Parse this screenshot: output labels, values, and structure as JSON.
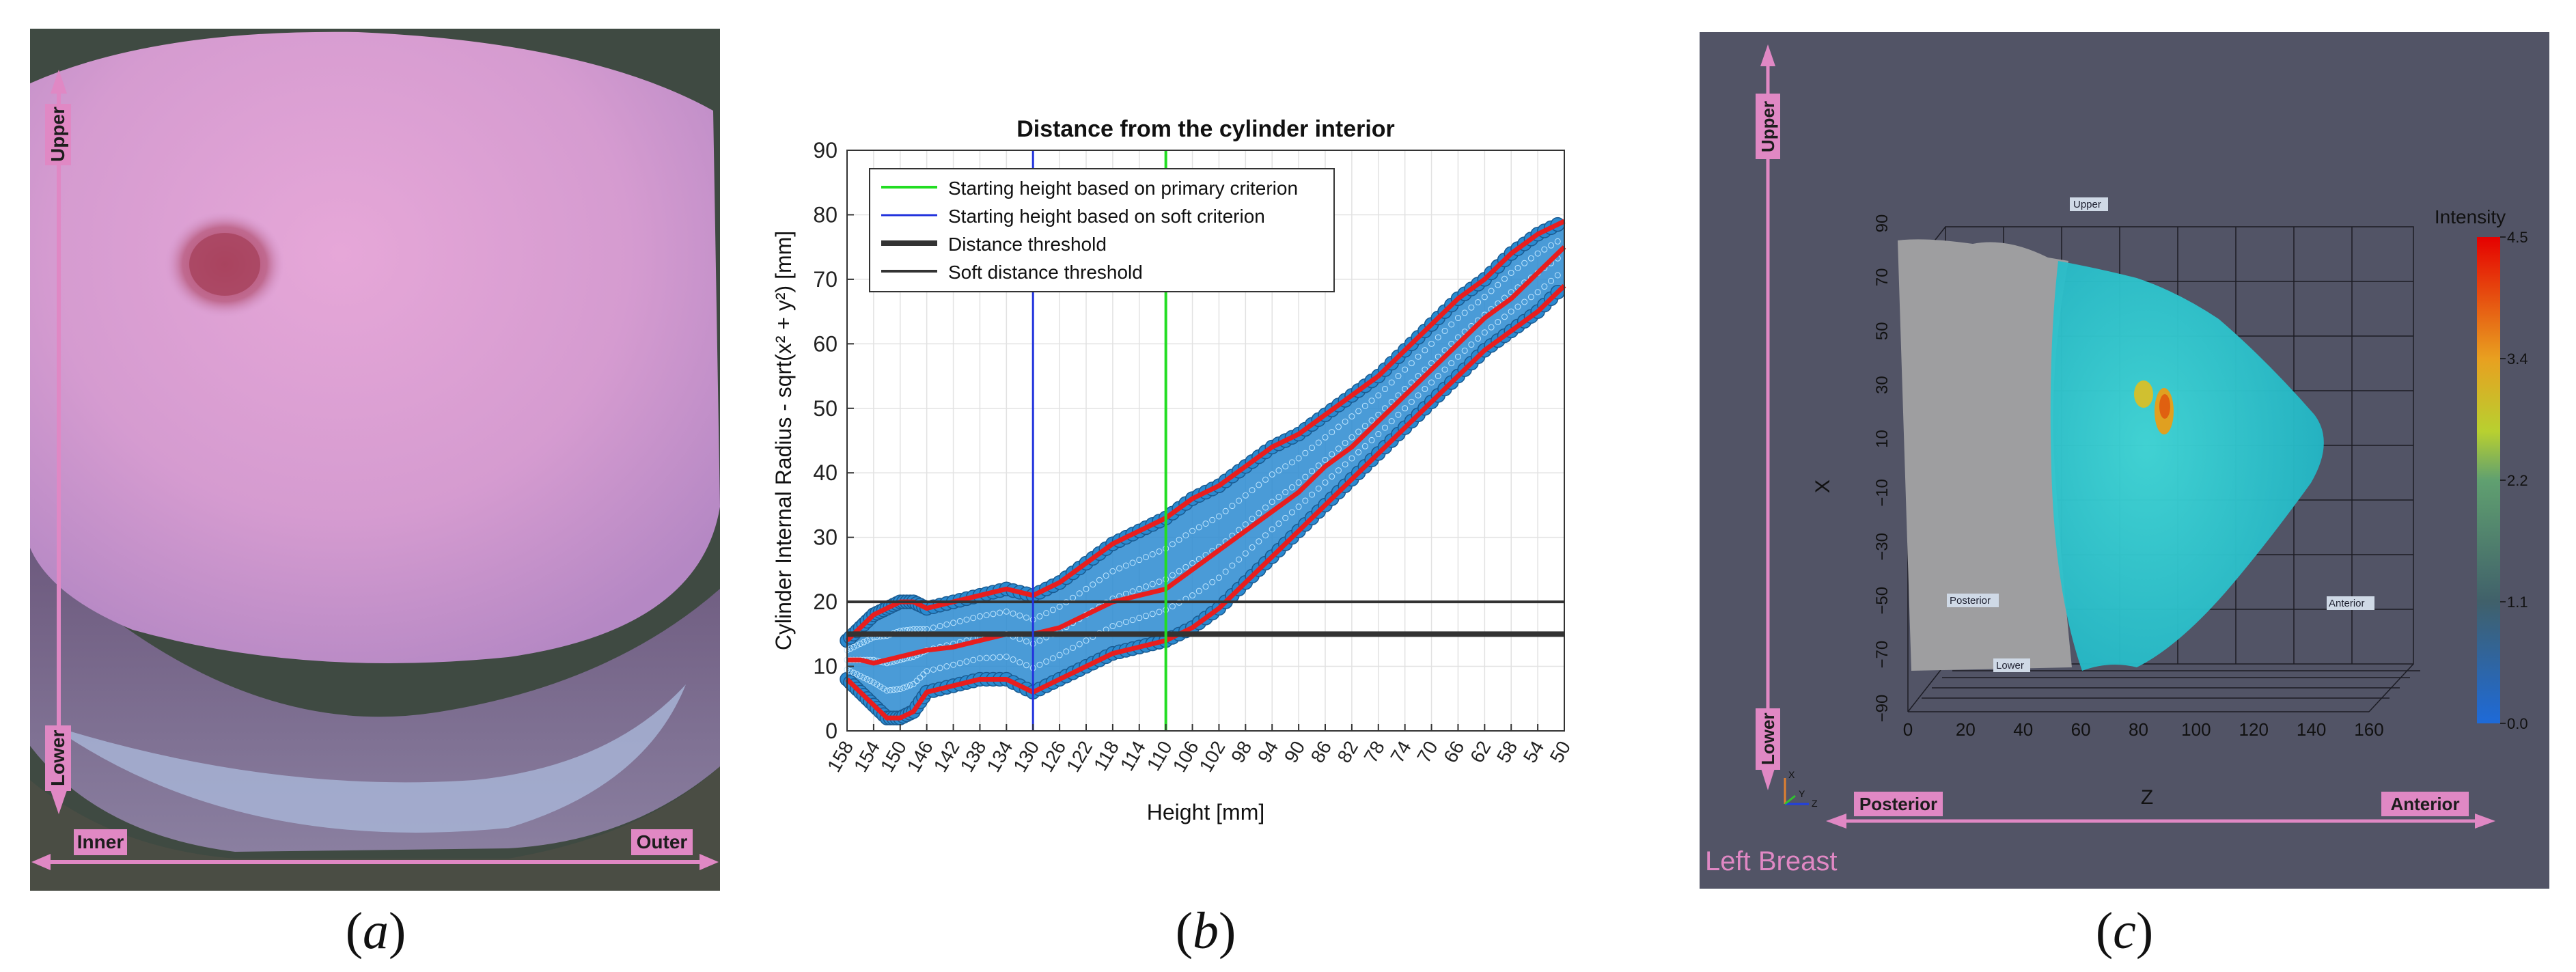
{
  "captions": {
    "a": "a",
    "b": "b",
    "c": "c"
  },
  "panel_a": {
    "labels": {
      "upper": "Upper",
      "lower": "Lower",
      "inner": "Inner",
      "outer": "Outer"
    }
  },
  "panel_c": {
    "labels": {
      "upper": "Upper",
      "lower": "Lower",
      "posterior": "Posterior",
      "anterior": "Anterior",
      "left_breast": "Left Breast",
      "in_upper": "Upper",
      "in_lower": "Lower",
      "in_posterior": "Posterior",
      "in_anterior": "Anterior",
      "x_axis": "X",
      "z_axis": "Z",
      "triad_x": "X",
      "triad_y": "Y",
      "triad_z": "Z"
    },
    "colorbar": {
      "title": "Intensity",
      "ticks": [
        "4.5",
        "3.4",
        "2.2",
        "1.1",
        "0.0"
      ]
    },
    "x_ticks": [
      "90",
      "70",
      "50",
      "30",
      "10",
      "−10",
      "−30",
      "−50",
      "−70",
      "−90"
    ],
    "z_ticks": [
      "0",
      "20",
      "40",
      "60",
      "80",
      "100",
      "120",
      "140",
      "160"
    ]
  },
  "colors": {
    "pink": "#e088c4",
    "red": "#e81e1e",
    "blue_pts": "#2a8ad0",
    "green": "#22dd22",
    "vblue": "#2233dd"
  },
  "chart_data": {
    "type": "scatter",
    "title": "Distance from the cylinder interior",
    "xlabel": "Height [mm]",
    "ylabel": "Cylinder Internal Radius - sqrt(x² + y²) [mm]",
    "xlim": [
      158,
      50
    ],
    "ylim": [
      0,
      90
    ],
    "x_reversed": true,
    "x_ticks": [
      158,
      154,
      150,
      146,
      142,
      138,
      134,
      130,
      126,
      122,
      118,
      114,
      110,
      106,
      102,
      98,
      94,
      90,
      86,
      82,
      78,
      74,
      70,
      66,
      62,
      58,
      54,
      50
    ],
    "y_ticks": [
      0,
      10,
      20,
      30,
      40,
      50,
      60,
      70,
      80,
      90
    ],
    "grid": true,
    "legend_position": "top-left",
    "legend": [
      {
        "label": "Starting height based on primary criterion",
        "color": "#22dd22"
      },
      {
        "label": "Starting height based on soft criterion",
        "color": "#2233dd"
      },
      {
        "label": "Distance threshold",
        "color": "#333333"
      },
      {
        "label": "Soft distance threshold",
        "color": "#333333"
      }
    ],
    "vlines": {
      "primary_criterion": 110,
      "soft_criterion": 130
    },
    "hlines": {
      "distance_threshold": 15,
      "soft_distance_threshold": 20
    },
    "envelope": {
      "x": [
        158,
        156,
        154,
        152,
        150,
        148,
        146,
        142,
        138,
        134,
        130,
        126,
        122,
        118,
        114,
        110,
        106,
        102,
        98,
        94,
        90,
        86,
        82,
        78,
        74,
        70,
        66,
        62,
        58,
        54,
        50
      ],
      "upper": [
        14,
        16,
        18,
        19,
        20,
        20,
        19,
        20,
        21,
        22,
        21,
        23,
        26,
        29,
        31,
        33,
        36,
        38,
        41,
        44,
        46,
        49,
        52,
        55,
        59,
        63,
        67,
        70,
        74,
        77,
        79
      ],
      "mean": [
        11,
        11,
        10.5,
        11,
        11.5,
        12,
        12.5,
        13,
        14,
        15,
        15,
        16,
        18,
        20,
        21,
        22,
        25,
        28,
        31,
        34,
        37,
        41,
        44,
        48,
        52,
        56,
        60,
        64,
        67,
        71,
        75
      ],
      "lower": [
        8,
        6,
        4,
        2,
        2,
        3,
        6,
        7,
        8,
        8,
        6,
        8,
        10,
        12,
        13,
        14,
        16,
        19,
        23,
        27,
        31,
        35,
        39,
        43,
        47,
        51,
        55,
        59,
        62,
        65,
        69
      ]
    }
  }
}
